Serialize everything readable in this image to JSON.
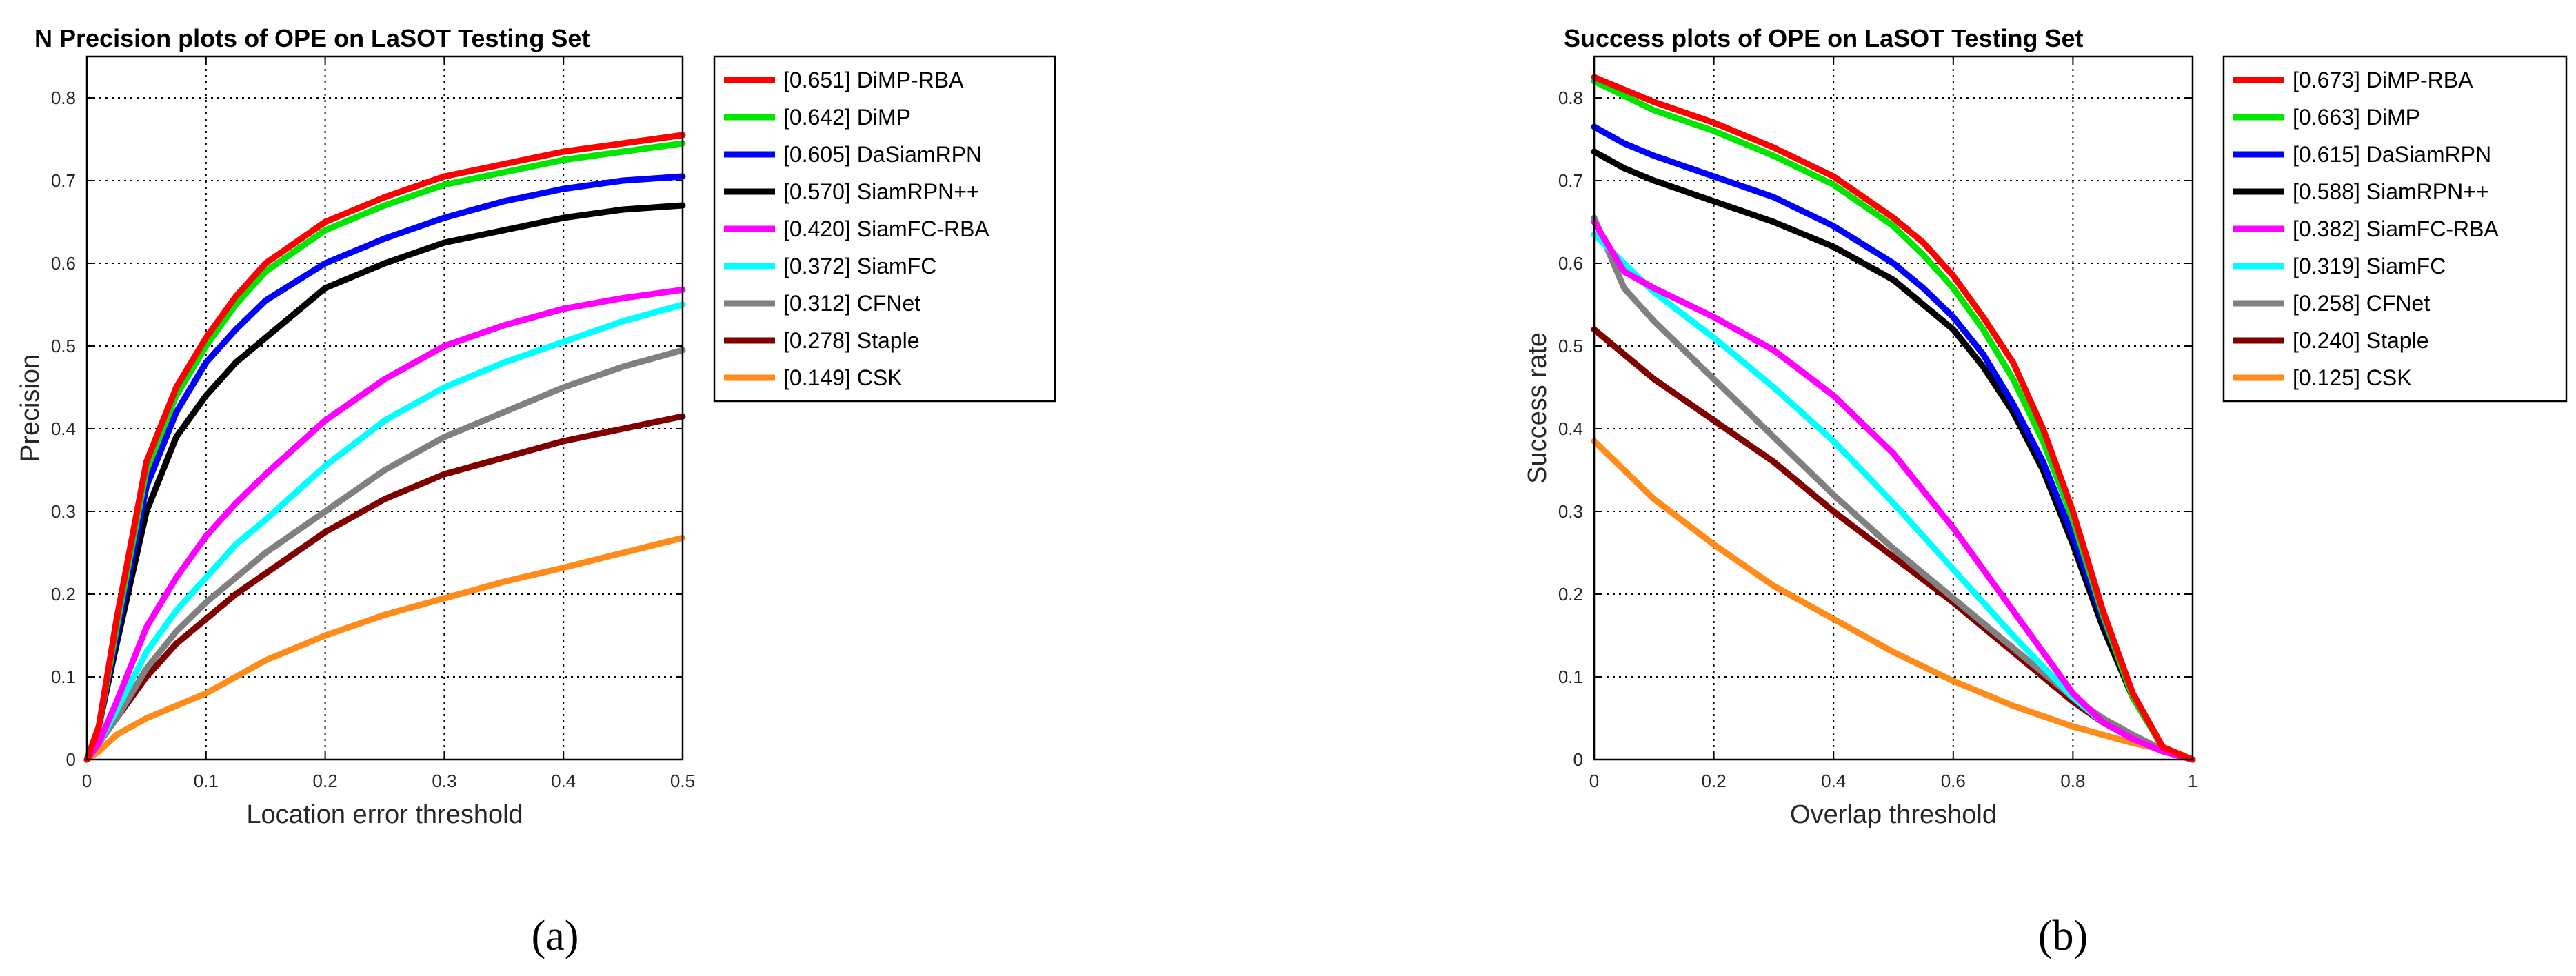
{
  "chart_data": [
    {
      "type": "line",
      "title": "N Precision plots of OPE on LaSOT Testing Set",
      "xlabel": "Location error threshold",
      "ylabel": "Precision",
      "xlim": [
        0,
        0.5
      ],
      "ylim": [
        0,
        0.85
      ],
      "xticks": [
        "0",
        "0.1",
        "0.2",
        "0.3",
        "0.4",
        "0.5"
      ],
      "yticks": [
        "0",
        "0.1",
        "0.2",
        "0.3",
        "0.4",
        "0.5",
        "0.6",
        "0.7",
        "0.8"
      ],
      "grid": true,
      "legend_position": "outside-right",
      "caption": "(a)",
      "series": [
        {
          "name": "[0.651] DiMP-RBA",
          "color": "#ff0000",
          "x": [
            0,
            0.01,
            0.025,
            0.05,
            0.075,
            0.1,
            0.125,
            0.15,
            0.2,
            0.25,
            0.3,
            0.35,
            0.4,
            0.45,
            0.5
          ],
          "y": [
            0,
            0.04,
            0.17,
            0.36,
            0.45,
            0.51,
            0.56,
            0.6,
            0.65,
            0.68,
            0.705,
            0.72,
            0.735,
            0.745,
            0.755
          ]
        },
        {
          "name": "[0.642] DiMP",
          "color": "#00e600",
          "x": [
            0,
            0.01,
            0.025,
            0.05,
            0.075,
            0.1,
            0.125,
            0.15,
            0.2,
            0.25,
            0.3,
            0.35,
            0.4,
            0.45,
            0.5
          ],
          "y": [
            0,
            0.04,
            0.16,
            0.35,
            0.44,
            0.5,
            0.55,
            0.59,
            0.64,
            0.67,
            0.695,
            0.71,
            0.725,
            0.735,
            0.745
          ]
        },
        {
          "name": "[0.605] DaSiamRPN",
          "color": "#0000ff",
          "x": [
            0,
            0.01,
            0.025,
            0.05,
            0.075,
            0.1,
            0.125,
            0.15,
            0.2,
            0.25,
            0.3,
            0.35,
            0.4,
            0.45,
            0.5
          ],
          "y": [
            0,
            0.04,
            0.15,
            0.33,
            0.42,
            0.48,
            0.52,
            0.555,
            0.6,
            0.63,
            0.655,
            0.675,
            0.69,
            0.7,
            0.705
          ]
        },
        {
          "name": "[0.570] SiamRPN++",
          "color": "#000000",
          "x": [
            0,
            0.01,
            0.025,
            0.05,
            0.075,
            0.1,
            0.125,
            0.15,
            0.2,
            0.25,
            0.3,
            0.35,
            0.4,
            0.45,
            0.5
          ],
          "y": [
            0,
            0.04,
            0.14,
            0.3,
            0.39,
            0.44,
            0.48,
            0.51,
            0.57,
            0.6,
            0.625,
            0.64,
            0.655,
            0.665,
            0.67
          ]
        },
        {
          "name": "[0.420] SiamFC-RBA",
          "color": "#ff00ff",
          "x": [
            0,
            0.01,
            0.025,
            0.05,
            0.075,
            0.1,
            0.125,
            0.15,
            0.2,
            0.25,
            0.3,
            0.35,
            0.4,
            0.45,
            0.5
          ],
          "y": [
            0,
            0.02,
            0.07,
            0.16,
            0.22,
            0.27,
            0.31,
            0.345,
            0.41,
            0.46,
            0.5,
            0.525,
            0.545,
            0.558,
            0.568
          ]
        },
        {
          "name": "[0.372] SiamFC",
          "color": "#00ffff",
          "x": [
            0,
            0.01,
            0.025,
            0.05,
            0.075,
            0.1,
            0.125,
            0.15,
            0.2,
            0.25,
            0.3,
            0.35,
            0.4,
            0.45,
            0.5
          ],
          "y": [
            0,
            0.02,
            0.06,
            0.13,
            0.18,
            0.22,
            0.26,
            0.29,
            0.355,
            0.41,
            0.45,
            0.48,
            0.505,
            0.53,
            0.55
          ]
        },
        {
          "name": "[0.312] CFNet",
          "color": "#808080",
          "x": [
            0,
            0.01,
            0.025,
            0.05,
            0.075,
            0.1,
            0.125,
            0.15,
            0.2,
            0.25,
            0.3,
            0.35,
            0.4,
            0.45,
            0.5
          ],
          "y": [
            0,
            0.02,
            0.05,
            0.11,
            0.155,
            0.19,
            0.22,
            0.25,
            0.3,
            0.35,
            0.39,
            0.42,
            0.45,
            0.475,
            0.495
          ]
        },
        {
          "name": "[0.278] Staple",
          "color": "#800000",
          "x": [
            0,
            0.01,
            0.025,
            0.05,
            0.075,
            0.1,
            0.125,
            0.15,
            0.2,
            0.25,
            0.3,
            0.35,
            0.4,
            0.45,
            0.5
          ],
          "y": [
            0,
            0.02,
            0.05,
            0.1,
            0.14,
            0.17,
            0.2,
            0.225,
            0.275,
            0.315,
            0.345,
            0.365,
            0.385,
            0.4,
            0.415
          ]
        },
        {
          "name": "[0.149] CSK",
          "color": "#ff8c1a",
          "x": [
            0,
            0.01,
            0.025,
            0.05,
            0.075,
            0.1,
            0.125,
            0.15,
            0.2,
            0.25,
            0.3,
            0.35,
            0.4,
            0.45,
            0.5
          ],
          "y": [
            0,
            0.01,
            0.03,
            0.05,
            0.065,
            0.08,
            0.1,
            0.12,
            0.15,
            0.175,
            0.195,
            0.215,
            0.232,
            0.25,
            0.268
          ]
        }
      ]
    },
    {
      "type": "line",
      "title": "Success plots of OPE on LaSOT Testing Set",
      "xlabel": "Overlap threshold",
      "ylabel": "Success rate",
      "xlim": [
        0,
        1
      ],
      "ylim": [
        0,
        0.85
      ],
      "xticks": [
        "0",
        "0.2",
        "0.4",
        "0.6",
        "0.8",
        "1"
      ],
      "yticks": [
        "0",
        "0.1",
        "0.2",
        "0.3",
        "0.4",
        "0.5",
        "0.6",
        "0.7",
        "0.8"
      ],
      "grid": true,
      "legend_position": "outside-right",
      "caption": "(b)",
      "series": [
        {
          "name": "[0.673] DiMP-RBA",
          "color": "#ff0000",
          "x": [
            0,
            0.1,
            0.2,
            0.3,
            0.4,
            0.5,
            0.55,
            0.6,
            0.65,
            0.7,
            0.75,
            0.8,
            0.85,
            0.9,
            0.95,
            1
          ],
          "y": [
            0.825,
            0.795,
            0.77,
            0.74,
            0.705,
            0.655,
            0.625,
            0.585,
            0.535,
            0.48,
            0.4,
            0.3,
            0.18,
            0.08,
            0.015,
            0
          ]
        },
        {
          "name": "[0.663] DiMP",
          "color": "#00e600",
          "x": [
            0,
            0.1,
            0.2,
            0.3,
            0.4,
            0.5,
            0.55,
            0.6,
            0.65,
            0.7,
            0.75,
            0.8,
            0.85,
            0.9,
            0.95,
            1
          ],
          "y": [
            0.82,
            0.785,
            0.76,
            0.73,
            0.695,
            0.645,
            0.61,
            0.57,
            0.52,
            0.46,
            0.385,
            0.29,
            0.175,
            0.075,
            0.015,
            0
          ]
        },
        {
          "name": "[0.615] DaSiamRPN",
          "color": "#0000ff",
          "x": [
            0,
            0.05,
            0.1,
            0.2,
            0.3,
            0.4,
            0.5,
            0.55,
            0.6,
            0.65,
            0.7,
            0.75,
            0.8,
            0.85,
            0.9,
            0.95,
            1
          ],
          "y": [
            0.765,
            0.745,
            0.73,
            0.705,
            0.68,
            0.645,
            0.6,
            0.57,
            0.535,
            0.49,
            0.43,
            0.36,
            0.27,
            0.17,
            0.08,
            0.015,
            0
          ]
        },
        {
          "name": "[0.588] SiamRPN++",
          "color": "#000000",
          "x": [
            0,
            0.05,
            0.1,
            0.2,
            0.3,
            0.4,
            0.5,
            0.55,
            0.6,
            0.65,
            0.7,
            0.75,
            0.8,
            0.85,
            0.9,
            0.95,
            1
          ],
          "y": [
            0.735,
            0.715,
            0.7,
            0.675,
            0.65,
            0.62,
            0.58,
            0.55,
            0.52,
            0.475,
            0.42,
            0.35,
            0.26,
            0.16,
            0.075,
            0.015,
            0
          ]
        },
        {
          "name": "[0.382] SiamFC-RBA",
          "color": "#ff00ff",
          "x": [
            0,
            0.05,
            0.1,
            0.2,
            0.3,
            0.4,
            0.5,
            0.6,
            0.7,
            0.8,
            0.85,
            0.9,
            0.95,
            1
          ],
          "y": [
            0.65,
            0.59,
            0.57,
            0.535,
            0.495,
            0.44,
            0.37,
            0.28,
            0.18,
            0.08,
            0.045,
            0.025,
            0.01,
            0
          ]
        },
        {
          "name": "[0.319] SiamFC",
          "color": "#00ffff",
          "x": [
            0,
            0.05,
            0.1,
            0.2,
            0.3,
            0.4,
            0.5,
            0.6,
            0.7,
            0.8,
            0.85,
            0.9,
            0.95,
            1
          ],
          "y": [
            0.635,
            0.6,
            0.565,
            0.51,
            0.45,
            0.385,
            0.31,
            0.23,
            0.15,
            0.075,
            0.045,
            0.025,
            0.01,
            0
          ]
        },
        {
          "name": "[0.258] CFNet",
          "color": "#808080",
          "x": [
            0,
            0.05,
            0.1,
            0.2,
            0.3,
            0.4,
            0.5,
            0.6,
            0.7,
            0.8,
            0.85,
            0.9,
            0.95,
            1
          ],
          "y": [
            0.655,
            0.57,
            0.53,
            0.46,
            0.39,
            0.32,
            0.255,
            0.195,
            0.135,
            0.075,
            0.05,
            0.03,
            0.012,
            0
          ]
        },
        {
          "name": "[0.240] Staple",
          "color": "#800000",
          "x": [
            0,
            0.05,
            0.1,
            0.2,
            0.3,
            0.4,
            0.5,
            0.6,
            0.7,
            0.8,
            0.85,
            0.9,
            0.95,
            1
          ],
          "y": [
            0.52,
            0.49,
            0.46,
            0.41,
            0.36,
            0.3,
            0.245,
            0.19,
            0.13,
            0.07,
            0.045,
            0.028,
            0.012,
            0
          ]
        },
        {
          "name": "[0.125] CSK",
          "color": "#ff8c1a",
          "x": [
            0,
            0.05,
            0.1,
            0.2,
            0.3,
            0.4,
            0.5,
            0.6,
            0.7,
            0.8,
            0.9,
            0.95,
            1
          ],
          "y": [
            0.385,
            0.35,
            0.315,
            0.26,
            0.21,
            0.17,
            0.13,
            0.095,
            0.065,
            0.04,
            0.02,
            0.012,
            0
          ]
        }
      ]
    }
  ]
}
